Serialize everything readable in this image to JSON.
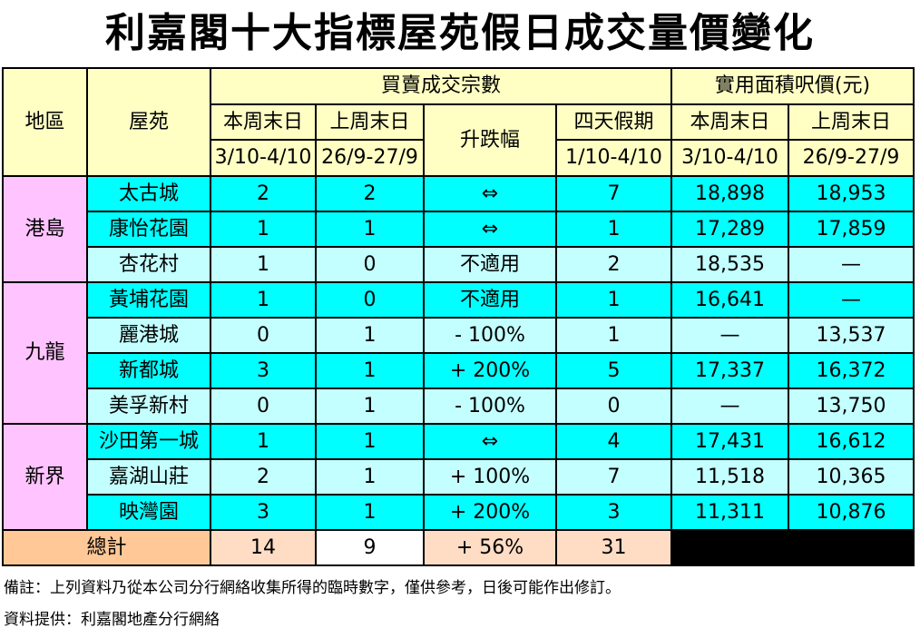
{
  "title": "利嘉閣十大指標屋苑假日成交量價變化",
  "header": {
    "region": "地區",
    "estate": "屋苑",
    "transactions_group": "買賣成交宗數",
    "price_group": "實用面積呎價(元)",
    "this_weekend": "本周末日",
    "last_weekend": "上周末日",
    "change": "升跌幅",
    "holiday": "四天假期",
    "this_weekend_dates": "3/10-4/10",
    "last_weekend_dates": "26/9-27/9",
    "holiday_dates": "1/10-4/10",
    "price_this_dates": "3/10-4/10",
    "price_last_dates": "26/9-27/9"
  },
  "regions": [
    {
      "name": "港島",
      "rows": [
        {
          "estate": "太古城",
          "this_wk": "2",
          "last_wk": "2",
          "change": "⇔",
          "holiday": "7",
          "price_this": "18,898",
          "price_last": "18,953"
        },
        {
          "estate": "康怡花園",
          "this_wk": "1",
          "last_wk": "1",
          "change": "⇔",
          "holiday": "1",
          "price_this": "17,289",
          "price_last": "17,859"
        },
        {
          "estate": "杏花村",
          "this_wk": "1",
          "last_wk": "0",
          "change": "不適用",
          "holiday": "2",
          "price_this": "18,535",
          "price_last": "—"
        }
      ]
    },
    {
      "name": "九龍",
      "rows": [
        {
          "estate": "黃埔花園",
          "this_wk": "1",
          "last_wk": "0",
          "change": "不適用",
          "holiday": "1",
          "price_this": "16,641",
          "price_last": "—"
        },
        {
          "estate": "麗港城",
          "this_wk": "0",
          "last_wk": "1",
          "change": "- 100%",
          "holiday": "1",
          "price_this": "—",
          "price_last": "13,537"
        },
        {
          "estate": "新都城",
          "this_wk": "3",
          "last_wk": "1",
          "change": "+ 200%",
          "holiday": "5",
          "price_this": "17,337",
          "price_last": "16,372"
        },
        {
          "estate": "美孚新村",
          "this_wk": "0",
          "last_wk": "1",
          "change": "- 100%",
          "holiday": "0",
          "price_this": "—",
          "price_last": "13,750"
        }
      ]
    },
    {
      "name": "新界",
      "rows": [
        {
          "estate": "沙田第一城",
          "this_wk": "1",
          "last_wk": "1",
          "change": "⇔",
          "holiday": "4",
          "price_this": "17,431",
          "price_last": "16,612"
        },
        {
          "estate": "嘉湖山莊",
          "this_wk": "2",
          "last_wk": "1",
          "change": "+ 100%",
          "holiday": "7",
          "price_this": "11,518",
          "price_last": "10,365"
        },
        {
          "estate": "映灣園",
          "this_wk": "3",
          "last_wk": "1",
          "change": "+ 200%",
          "holiday": "3",
          "price_this": "11,311",
          "price_last": "10,876"
        }
      ]
    }
  ],
  "total": {
    "label": "總計",
    "this_wk": "14",
    "last_wk": "9",
    "change": "+ 56%",
    "holiday": "31"
  },
  "footnote": "備註：上列資料乃從本公司分行網絡收集所得的臨時數字，僅供參考，日後可能作出修訂。",
  "source": "資料提供：利嘉閣地產分行網絡",
  "colors": {
    "header_bg": "#ffffc4",
    "region_bg": "#ffc4ff",
    "row_cyan": "#00ffff",
    "row_light_cyan": "#c4ffff",
    "total_label_bg": "#ffc896",
    "total_bg": "#ffdcc4"
  }
}
